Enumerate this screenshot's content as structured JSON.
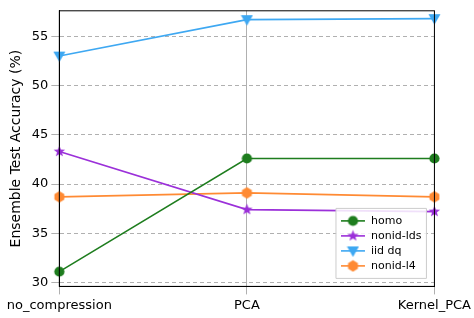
{
  "chart_data": {
    "type": "line",
    "y_label": "Ensemble Test Accuracy (%)",
    "categories": [
      "no_compression",
      "PCA",
      "Kernel_PCA"
    ],
    "series": [
      {
        "name": "homo",
        "color": "#1e7d1e",
        "marker": "circle",
        "values": [
          31.1,
          42.6,
          42.6
        ]
      },
      {
        "name": "nonid-lds",
        "color": "#9b30d9",
        "marker": "star",
        "values": [
          43.3,
          37.4,
          37.2
        ]
      },
      {
        "name": "iid dq",
        "color": "#3ea8f2",
        "marker": "triangle_down",
        "values": [
          53.0,
          56.7,
          56.8
        ]
      },
      {
        "name": "nonid-l4",
        "color": "#ff8a33",
        "marker": "hexagon",
        "values": [
          38.7,
          39.1,
          38.7
        ]
      }
    ],
    "ylim": [
      29.6,
      57.6
    ],
    "yticks": [
      30,
      35,
      40,
      45,
      50,
      55
    ],
    "grid": true,
    "legend": "lower right"
  }
}
